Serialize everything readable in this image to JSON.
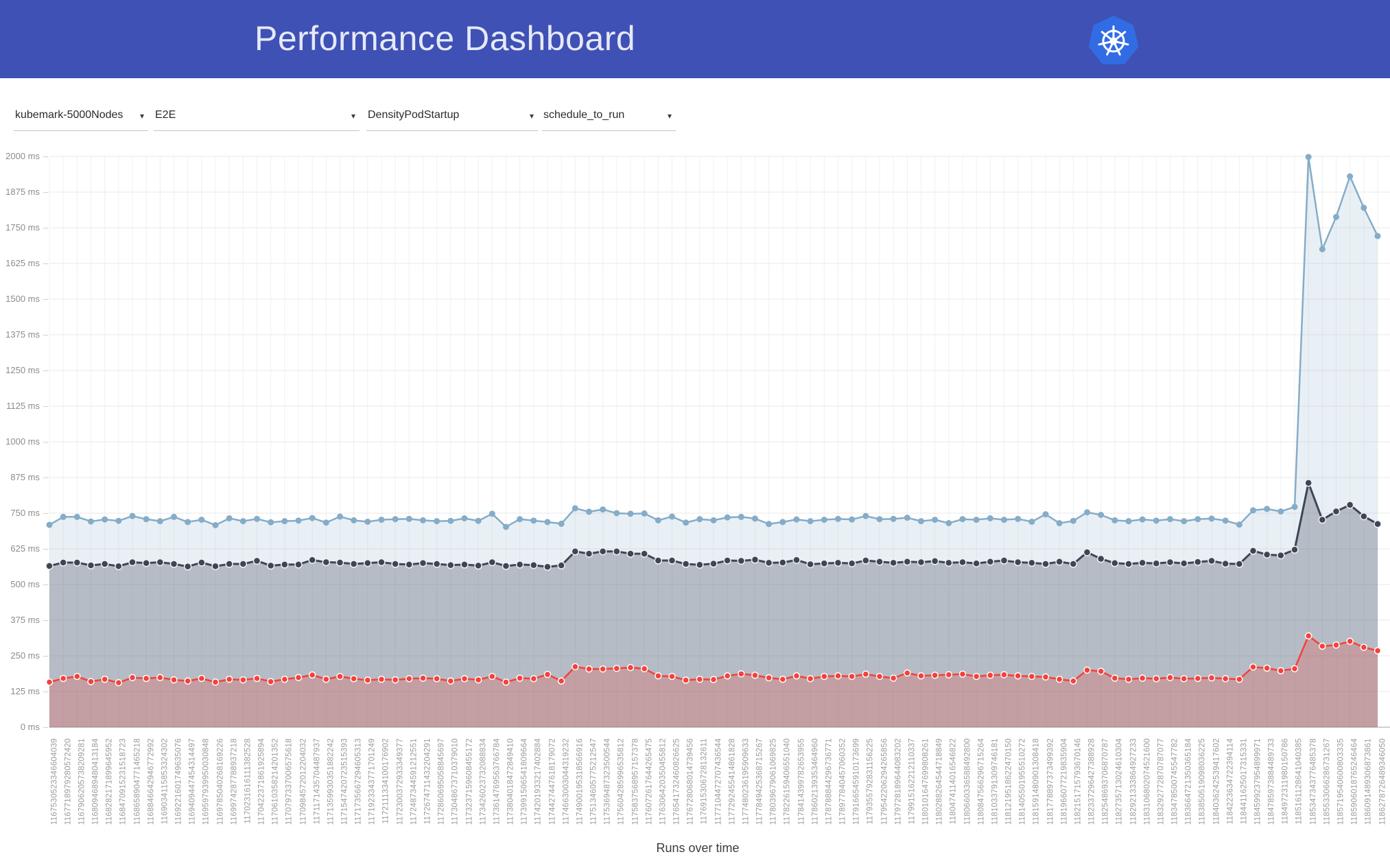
{
  "header": {
    "title": "Performance Dashboard",
    "background_color": "#3f51b5",
    "logo_color": "#326ce5"
  },
  "filters": [
    {
      "value": "kubemark-5000Nodes"
    },
    {
      "value": "E2E"
    },
    {
      "value": "DensityPodStartup"
    },
    {
      "value": "schedule_to_run"
    }
  ],
  "chart_data": {
    "type": "line",
    "title": "",
    "xlabel": "Runs over time",
    "ylabel": "",
    "ylim": [
      0,
      2000
    ],
    "y_tick_step": 125,
    "y_ticks": [
      "2000 ms",
      "1875 ms",
      "1750 ms",
      "1625 ms",
      "1500 ms",
      "1375 ms",
      "1250 ms",
      "1125 ms",
      "1000 ms",
      "875 ms",
      "750 ms",
      "625 ms",
      "500 ms",
      "375 ms",
      "250 ms",
      "125 ms",
      "0 ms"
    ],
    "grid": true,
    "legend_position": "none",
    "categories": [
      "1167530523346604039",
      "1167718979280572420",
      "1167906205738209281",
      "1168094689480413184",
      "1168282171899645952",
      "1168470915231518723",
      "1168658904771465218",
      "1168846642946772992",
      "1169034115853324302",
      "1169221601749635076",
      "1169409447454314497",
      "1169597939950030848",
      "1169785040268169226",
      "1169974287788937218",
      "1170231616111382528",
      "1170422371861925894",
      "1170610358214201352",
      "1170797337006575618",
      "1170984572012204032",
      "1171171435704487937",
      "1171359930351882242",
      "1171547420723515393",
      "1171735667294605313",
      "1171923343771701249",
      "1172111334100176902",
      "1172300372933349377",
      "1172487344591212551",
      "1172674711432204291",
      "1172860695058845697",
      "1173048673710379010",
      "1173237159608455172",
      "1173426023732088834",
      "1173614769563766784",
      "1173804018472849410",
      "1173991506541809664",
      "1174201933217402884",
      "1174427447618179072",
      "1174663003044319232",
      "1174900195318566916",
      "1175134605775212547",
      "1175369487323500544",
      "1175604285996535812",
      "1175837568957157378",
      "1176072617644265475",
      "1176306420350455812",
      "1176541732460826625",
      "1176728068014739456",
      "1176915306728132611",
      "1177104472707436544",
      "1177292455414861828",
      "1177480236195909633",
      "1177849425368715267",
      "1178039679061069825",
      "1178226159406551040",
      "1178414399782653955",
      "1178602139353464960",
      "1178788844296736771",
      "1178977840457060352",
      "1179166545910173699",
      "1179355792831156225",
      "1179542206294265856",
      "1179728189644083202",
      "1179915162212110337",
      "1180101647699808261",
      "1180288264544718849",
      "1180474114016546822",
      "1180660336588492800",
      "1180847566296715264",
      "1181033791309746181",
      "1181219518622470150",
      "1181405501955510272",
      "1181591480901308418",
      "1181778897373499392",
      "1181966077219835904",
      "1182151715793670146",
      "1182337296427388928",
      "1182548693706870787",
      "1182735713024610304",
      "1182921333864927233",
      "1183106802074521600",
      "1183292772870787077",
      "1183478500745547782",
      "1183664721350365184",
      "1183850519098036225",
      "1184036242539417602",
      "1184223634722394114",
      "1184411625017315331",
      "1184599237954899971",
      "1184785973884489733",
      "1184972311980150786",
      "1185161128641040385",
      "1185347343776485378",
      "1185533066286731267",
      "1185719540600803335",
      "1185906018765246464",
      "1186091489306873861",
      "1186278726489346050"
    ],
    "series": [
      {
        "id": "series-blue-upper",
        "color": "#85acc8",
        "fill": "rgba(133,172,200,0.18)",
        "line_width": 2.5,
        "marker_r": 4.5,
        "marker_stroke": "none",
        "values": [
          709,
          737,
          737,
          721,
          728,
          723,
          740,
          729,
          722,
          737,
          719,
          727,
          708,
          732,
          722,
          730,
          718,
          722,
          724,
          733,
          717,
          738,
          725,
          720,
          727,
          729,
          730,
          725,
          722,
          723,
          732,
          723,
          748,
          702,
          729,
          724,
          719,
          713,
          767,
          755,
          763,
          750,
          748,
          749,
          725,
          738,
          717,
          729,
          725,
          735,
          737,
          731,
          712,
          719,
          728,
          722,
          727,
          730,
          728,
          740,
          729,
          730,
          734,
          722,
          727,
          715,
          729,
          727,
          732,
          727,
          730,
          720,
          746,
          715,
          723,
          753,
          744,
          725,
          722,
          728,
          724,
          729,
          722,
          729,
          731,
          724,
          710,
          760,
          765,
          756,
          772,
          1998,
          1675,
          1788,
          1930,
          1820,
          1721
        ]
      },
      {
        "id": "series-dark-middle",
        "color": "#3e4555",
        "fill": "rgba(62,69,85,0.30)",
        "line_width": 3,
        "marker_r": 5,
        "marker_stroke": "#f0f0f0",
        "values": [
          565,
          577,
          577,
          567,
          572,
          564,
          578,
          575,
          578,
          572,
          563,
          577,
          564,
          572,
          572,
          583,
          566,
          570,
          570,
          586,
          578,
          577,
          572,
          575,
          578,
          572,
          570,
          575,
          572,
          568,
          570,
          566,
          578,
          565,
          570,
          568,
          562,
          567,
          616,
          608,
          616,
          616,
          608,
          608,
          584,
          584,
          572,
          569,
          573,
          584,
          583,
          587,
          576,
          577,
          586,
          571,
          574,
          576,
          574,
          584,
          580,
          576,
          580,
          578,
          582,
          576,
          578,
          574,
          580,
          584,
          578,
          576,
          572,
          580,
          572,
          613,
          590,
          575,
          572,
          576,
          574,
          578,
          574,
          579,
          583,
          573,
          572,
          618,
          605,
          602,
          622,
          856,
          727,
          756,
          779,
          739,
          712
        ]
      },
      {
        "id": "series-red-lower",
        "color": "#f4413b",
        "fill": "rgba(244,67,54,0.24)",
        "line_width": 2.5,
        "marker_r": 4.5,
        "marker_stroke": "#ffffff",
        "values": [
          158,
          171,
          178,
          160,
          168,
          156,
          174,
          171,
          174,
          166,
          162,
          171,
          158,
          168,
          166,
          171,
          160,
          168,
          174,
          183,
          168,
          178,
          170,
          165,
          168,
          166,
          170,
          172,
          170,
          162,
          170,
          166,
          178,
          158,
          172,
          170,
          185,
          162,
          212,
          204,
          204,
          206,
          209,
          205,
          180,
          178,
          165,
          168,
          167,
          180,
          187,
          182,
          173,
          168,
          180,
          170,
          178,
          180,
          178,
          186,
          178,
          172,
          190,
          180,
          182,
          184,
          186,
          178,
          182,
          184,
          180,
          178,
          176,
          168,
          162,
          200,
          196,
          172,
          168,
          172,
          170,
          174,
          170,
          171,
          173,
          170,
          168,
          211,
          207,
          198,
          205,
          320,
          284,
          288,
          301,
          280,
          268
        ]
      }
    ]
  }
}
